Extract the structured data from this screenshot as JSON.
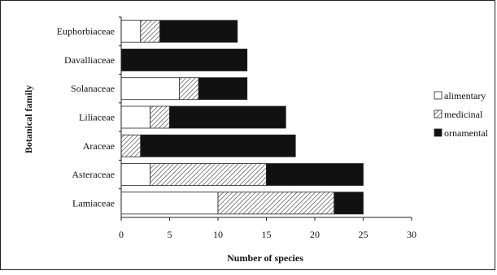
{
  "chart_data": {
    "type": "bar",
    "orientation": "horizontal",
    "stacked": true,
    "xlabel": "Number of species",
    "ylabel": "Botanical family",
    "xlim": [
      0,
      30
    ],
    "xticks": [
      0,
      5,
      10,
      15,
      20,
      25,
      30
    ],
    "grid": false,
    "legend_position": "right",
    "categories": [
      "Euphorbiaceae",
      "Davalliaceae",
      "Solanaceae",
      "Liliaceae",
      "Araceae",
      "Asteraceae",
      "Lamiaceae"
    ],
    "series": [
      {
        "name": "alimentary",
        "pattern": "white",
        "color": "#ffffff",
        "values": [
          2,
          0,
          6,
          3,
          0,
          3,
          10
        ]
      },
      {
        "name": "medicinal",
        "pattern": "hatch",
        "color": "#ffffff",
        "values": [
          2,
          0,
          2,
          2,
          2,
          12,
          12
        ]
      },
      {
        "name": "ornamental",
        "pattern": "solid",
        "color": "#111111",
        "values": [
          8,
          13,
          5,
          12,
          16,
          10,
          3
        ]
      }
    ]
  }
}
